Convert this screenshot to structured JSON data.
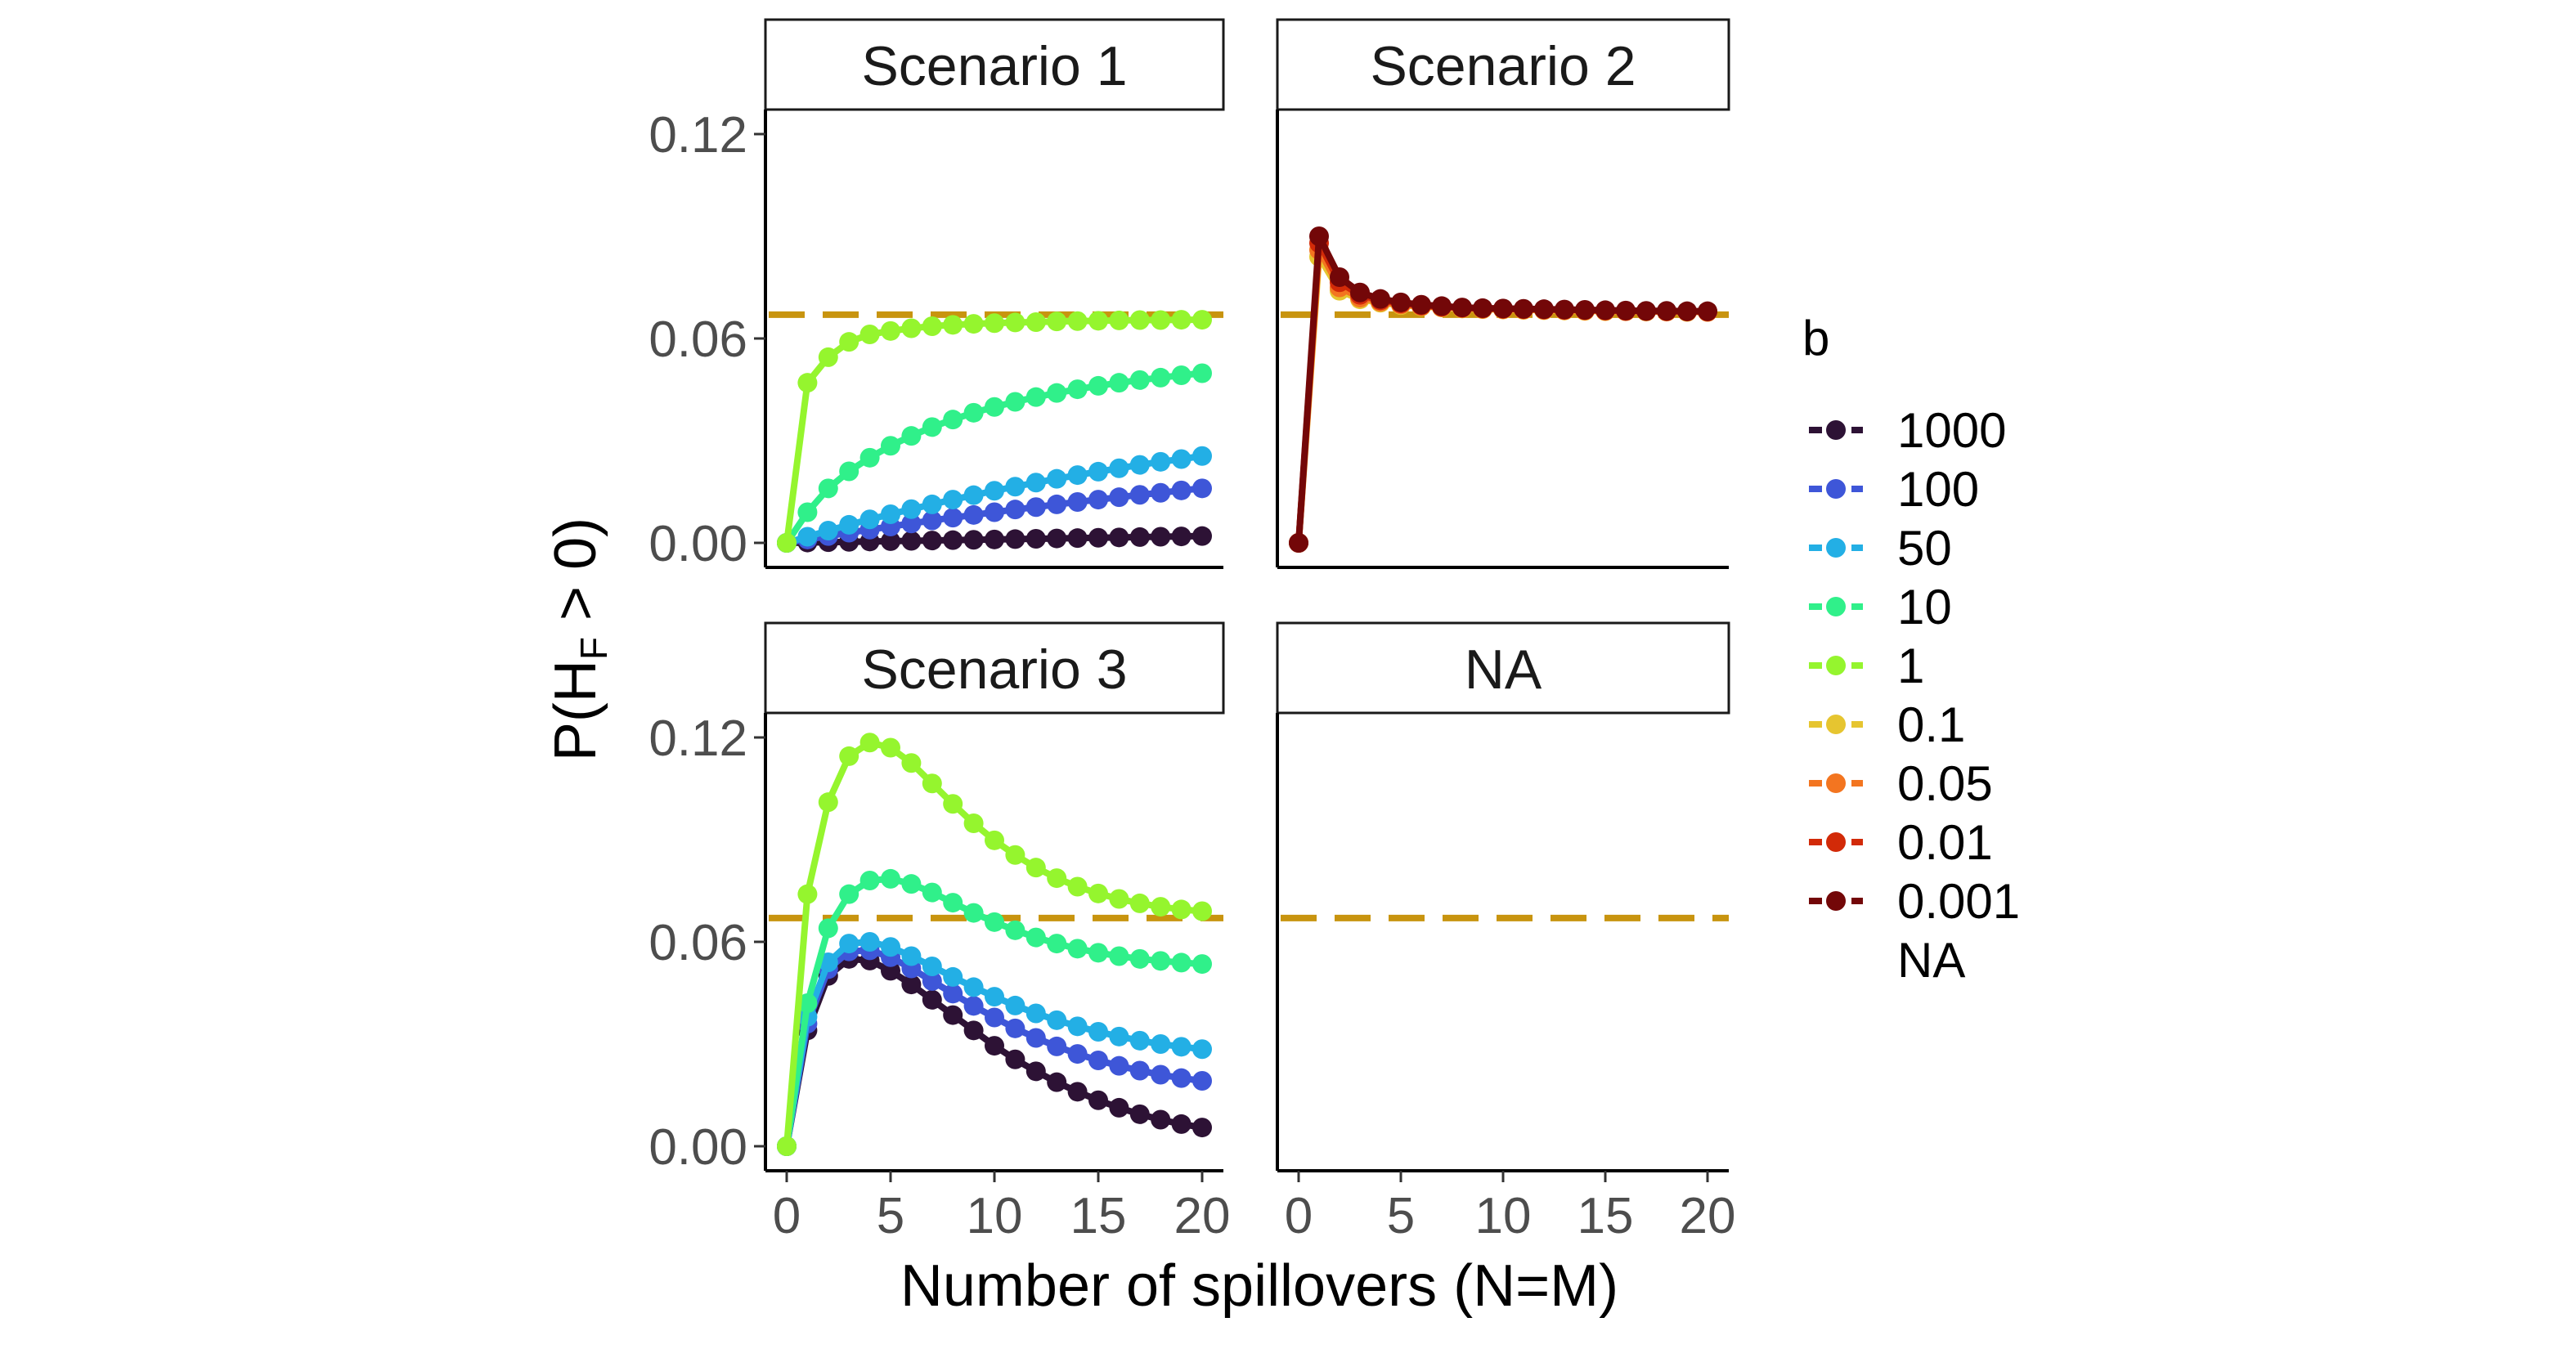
{
  "colors": {
    "reference_line": "#C8940F",
    "axis": "#000000",
    "tick_text": "#4d4d4d"
  },
  "chart_data": {
    "type": "line",
    "facet_layout": "2x2",
    "x_axis_title": "Number of spillovers (N=M)",
    "y_axis_title": "P(H_F > 0)",
    "y_axis_title_parts": {
      "prefix": "P(H",
      "subscript": "F",
      "suffix": " > 0)"
    },
    "xlim": [
      0,
      20
    ],
    "ylim": [
      0,
      0.12
    ],
    "x_ticks": [
      0,
      5,
      10,
      15,
      20
    ],
    "x_tick_labels": [
      "0",
      "5",
      "10",
      "15",
      "20"
    ],
    "y_ticks": [
      0,
      0.06,
      0.12
    ],
    "y_tick_labels": [
      "0.00",
      "0.06",
      "0.12"
    ],
    "reference_line": {
      "y": 0.067,
      "style": "dashed"
    },
    "legend": {
      "title": "b",
      "placement": "right",
      "entries": [
        {
          "label": "1000",
          "color": "#2D1235"
        },
        {
          "label": "100",
          "color": "#3E56D8"
        },
        {
          "label": "50",
          "color": "#23AFE5"
        },
        {
          "label": "10",
          "color": "#30F08A"
        },
        {
          "label": "1",
          "color": "#95F52E"
        },
        {
          "label": "0.1",
          "color": "#E6C530"
        },
        {
          "label": "0.05",
          "color": "#F37520"
        },
        {
          "label": "0.01",
          "color": "#D22A08"
        },
        {
          "label": "0.001",
          "color": "#730708"
        },
        {
          "label": "NA",
          "color": null
        }
      ]
    },
    "x": [
      0,
      1,
      2,
      3,
      4,
      5,
      6,
      7,
      8,
      9,
      10,
      11,
      12,
      13,
      14,
      15,
      16,
      17,
      18,
      19,
      20
    ],
    "panels": [
      {
        "label": "Scenario 1",
        "show_y_axis": true,
        "show_x_axis": false,
        "series": [
          {
            "name": "1000",
            "color": "#2D1235",
            "values": [
              0,
              0.0001,
              0.0002,
              0.0003,
              0.0004,
              0.0005,
              0.0006,
              0.0007,
              0.0008,
              0.0009,
              0.001,
              0.0011,
              0.0012,
              0.0013,
              0.0014,
              0.0015,
              0.0016,
              0.0017,
              0.0018,
              0.0019,
              0.002
            ]
          },
          {
            "name": "100",
            "color": "#3E56D8",
            "values": [
              0,
              0.001,
              0.002,
              0.003,
              0.0039,
              0.0048,
              0.0057,
              0.0066,
              0.0074,
              0.0082,
              0.009,
              0.0098,
              0.0105,
              0.0113,
              0.012,
              0.0127,
              0.0134,
              0.0141,
              0.0147,
              0.0154,
              0.016
            ]
          },
          {
            "name": "50",
            "color": "#23AFE5",
            "values": [
              0,
              0.0018,
              0.0036,
              0.0053,
              0.0069,
              0.0084,
              0.0099,
              0.0113,
              0.0127,
              0.014,
              0.0153,
              0.0165,
              0.0177,
              0.0188,
              0.0199,
              0.0209,
              0.0219,
              0.0229,
              0.0238,
              0.0246,
              0.0255
            ]
          },
          {
            "name": "10",
            "color": "#30F08A",
            "values": [
              0,
              0.009,
              0.016,
              0.021,
              0.025,
              0.0285,
              0.0314,
              0.034,
              0.0362,
              0.0382,
              0.0399,
              0.0414,
              0.0428,
              0.044,
              0.0451,
              0.0461,
              0.047,
              0.0478,
              0.0485,
              0.0492,
              0.0498
            ]
          },
          {
            "name": "1",
            "color": "#95F52E",
            "values": [
              0,
              0.047,
              0.0545,
              0.059,
              0.0612,
              0.0622,
              0.063,
              0.0636,
              0.064,
              0.0643,
              0.0645,
              0.0647,
              0.0648,
              0.065,
              0.0651,
              0.0652,
              0.0653,
              0.0654,
              0.0654,
              0.0655,
              0.0655
            ]
          }
        ]
      },
      {
        "label": "Scenario 2",
        "show_y_axis": false,
        "show_x_axis": false,
        "series": [
          {
            "name": "0.1",
            "color": "#E6C530",
            "values": [
              0,
              0.084,
              0.074,
              0.0715,
              0.0705,
              0.0698,
              0.0694,
              0.0691,
              0.0688,
              0.0686,
              0.0685,
              0.0684,
              0.0683,
              0.0682,
              0.0681,
              0.068,
              0.068,
              0.0679,
              0.0679,
              0.0678,
              0.0678
            ]
          },
          {
            "name": "0.05",
            "color": "#F37520",
            "values": [
              0,
              0.086,
              0.075,
              0.072,
              0.0708,
              0.07,
              0.0695,
              0.0692,
              0.0689,
              0.0687,
              0.0686,
              0.0685,
              0.0684,
              0.0683,
              0.0682,
              0.0681,
              0.068,
              0.068,
              0.0679,
              0.0679,
              0.0678
            ]
          },
          {
            "name": "0.01",
            "color": "#D22A08",
            "values": [
              0,
              0.088,
              0.0765,
              0.0728,
              0.0712,
              0.0703,
              0.0697,
              0.0693,
              0.069,
              0.0688,
              0.0687,
              0.0686,
              0.0685,
              0.0684,
              0.0683,
              0.0682,
              0.0681,
              0.068,
              0.068,
              0.0679,
              0.0679
            ]
          },
          {
            "name": "0.001",
            "color": "#730708",
            "values": [
              0,
              0.09,
              0.078,
              0.0735,
              0.0716,
              0.0706,
              0.0699,
              0.0695,
              0.0691,
              0.0689,
              0.0688,
              0.0687,
              0.0686,
              0.0685,
              0.0684,
              0.0683,
              0.0682,
              0.0681,
              0.0681,
              0.068,
              0.068
            ]
          }
        ]
      },
      {
        "label": "Scenario 3",
        "show_y_axis": true,
        "show_x_axis": true,
        "series": [
          {
            "name": "1000",
            "color": "#2D1235",
            "values": [
              0,
              0.034,
              0.05,
              0.055,
              0.0545,
              0.0515,
              0.0475,
              0.043,
              0.0385,
              0.034,
              0.0295,
              0.0255,
              0.022,
              0.0188,
              0.016,
              0.0135,
              0.0113,
              0.0094,
              0.0078,
              0.0065,
              0.0055
            ]
          },
          {
            "name": "100",
            "color": "#3E56D8",
            "values": [
              0,
              0.036,
              0.052,
              0.0572,
              0.0575,
              0.0555,
              0.0522,
              0.0485,
              0.0448,
              0.0412,
              0.0378,
              0.0346,
              0.0318,
              0.0293,
              0.0271,
              0.0252,
              0.0236,
              0.0222,
              0.021,
              0.02,
              0.0192
            ]
          },
          {
            "name": "50",
            "color": "#23AFE5",
            "values": [
              0,
              0.038,
              0.054,
              0.0595,
              0.06,
              0.0585,
              0.0558,
              0.0528,
              0.0497,
              0.0467,
              0.0439,
              0.0413,
              0.039,
              0.037,
              0.0352,
              0.0336,
              0.0322,
              0.031,
              0.03,
              0.0292,
              0.0285
            ]
          },
          {
            "name": "10",
            "color": "#30F08A",
            "values": [
              0,
              0.042,
              0.064,
              0.074,
              0.078,
              0.0785,
              0.077,
              0.0745,
              0.0715,
              0.0685,
              0.0658,
              0.0634,
              0.0613,
              0.0595,
              0.058,
              0.0568,
              0.0558,
              0.055,
              0.0544,
              0.0539,
              0.0535
            ]
          },
          {
            "name": "1",
            "color": "#95F52E",
            "values": [
              0,
              0.074,
              0.101,
              0.1145,
              0.1185,
              0.117,
              0.1125,
              0.1065,
              0.1005,
              0.0948,
              0.0898,
              0.0855,
              0.0818,
              0.0787,
              0.0762,
              0.0742,
              0.0726,
              0.0713,
              0.0703,
              0.0695,
              0.069
            ]
          }
        ]
      },
      {
        "label": "NA",
        "show_y_axis": false,
        "show_x_axis": true,
        "series": []
      }
    ]
  }
}
